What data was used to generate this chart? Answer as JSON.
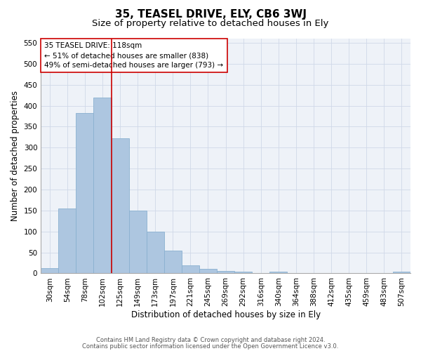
{
  "title1": "35, TEASEL DRIVE, ELY, CB6 3WJ",
  "title2": "Size of property relative to detached houses in Ely",
  "xlabel": "Distribution of detached houses by size in Ely",
  "ylabel": "Number of detached properties",
  "categories": [
    "30sqm",
    "54sqm",
    "78sqm",
    "102sqm",
    "125sqm",
    "149sqm",
    "173sqm",
    "197sqm",
    "221sqm",
    "245sqm",
    "269sqm",
    "292sqm",
    "316sqm",
    "340sqm",
    "364sqm",
    "388sqm",
    "412sqm",
    "435sqm",
    "459sqm",
    "483sqm",
    "507sqm"
  ],
  "values": [
    13,
    155,
    383,
    420,
    322,
    150,
    100,
    55,
    20,
    10,
    6,
    4,
    0,
    4,
    0,
    1,
    0,
    1,
    0,
    0,
    4
  ],
  "bar_color": "#adc6e0",
  "bar_edge_color": "#8ab0d0",
  "vline_color": "#cc0000",
  "vline_x": 3.5,
  "annotation_line1": "35 TEASEL DRIVE: 118sqm",
  "annotation_line2": "← 51% of detached houses are smaller (838)",
  "annotation_line3": "49% of semi-detached houses are larger (793) →",
  "annotation_box_color": "#ffffff",
  "annotation_box_edge": "#cc0000",
  "grid_color": "#d0d8e8",
  "background_color": "#ffffff",
  "plot_bg_color": "#eef2f8",
  "ylim": [
    0,
    560
  ],
  "yticks": [
    0,
    50,
    100,
    150,
    200,
    250,
    300,
    350,
    400,
    450,
    500,
    550
  ],
  "footer1": "Contains HM Land Registry data © Crown copyright and database right 2024.",
  "footer2": "Contains public sector information licensed under the Open Government Licence v3.0.",
  "title1_fontsize": 11,
  "title2_fontsize": 9.5,
  "tick_fontsize": 7.5,
  "label_fontsize": 8.5,
  "annotation_fontsize": 7.5,
  "footer_fontsize": 6.0
}
